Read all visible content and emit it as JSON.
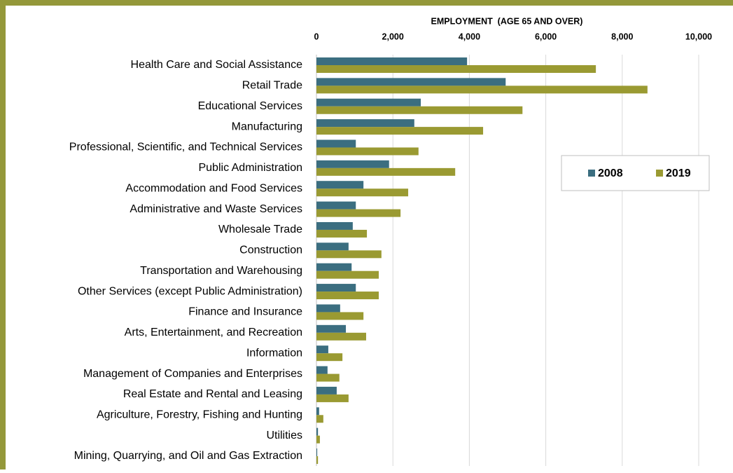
{
  "chart_data": {
    "type": "hbar",
    "title": "EMPLOYMENT  (AGE 65 AND OVER)",
    "categories": [
      "Health Care and Social Assistance",
      "Retail Trade",
      "Educational Services",
      "Manufacturing",
      "Professional, Scientific, and Technical Services",
      "Public Administration",
      "Accommodation and Food Services",
      "Administrative and Waste Services",
      "Wholesale Trade",
      "Construction",
      "Transportation and Warehousing",
      "Other Services (except Public Administration)",
      "Finance and Insurance",
      "Arts, Entertainment, and Recreation",
      "Information",
      "Management of Companies and Enterprises",
      "Real Estate and Rental and Leasing",
      "Agriculture, Forestry, Fishing and Hunting",
      "Utilities",
      "Mining, Quarrying, and Oil and Gas Extraction"
    ],
    "series": [
      {
        "name": "2008",
        "color": "#3b6e80",
        "values": [
          3940,
          4950,
          2730,
          2560,
          1030,
          1900,
          1230,
          1030,
          950,
          840,
          920,
          1030,
          620,
          770,
          310,
          290,
          530,
          70,
          40,
          20
        ]
      },
      {
        "name": "2019",
        "color": "#9a9a32",
        "values": [
          7310,
          8660,
          5390,
          4360,
          2670,
          3630,
          2400,
          2200,
          1320,
          1700,
          1630,
          1630,
          1230,
          1300,
          680,
          600,
          840,
          180,
          90,
          40
        ]
      }
    ],
    "xlim": [
      0,
      10000
    ],
    "xticks": [
      0,
      {
        "value": 2000,
        "label": "2,000"
      },
      {
        "value": 4000,
        "label": "4,000"
      },
      {
        "value": 6000,
        "label": "6,000"
      },
      {
        "value": 8000,
        "label": "8,000"
      },
      {
        "value": 10000,
        "label": "10,000"
      }
    ],
    "grid": true,
    "legend_position": "right"
  }
}
